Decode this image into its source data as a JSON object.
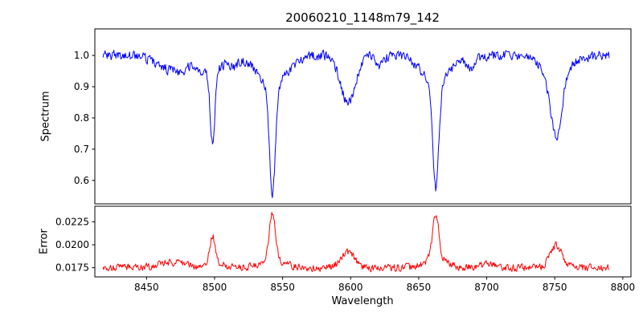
{
  "figure": {
    "title": "20060210_1148m79_142",
    "xlabel": "Wavelength",
    "background": "#ffffff"
  },
  "chart_data": [
    {
      "type": "line",
      "name": "spectrum",
      "title": "20060210_1148m79_142",
      "ylabel": "Spectrum",
      "xlabel": "",
      "color": "#0000ff",
      "grid": false,
      "legend": "none",
      "xlim": [
        8412,
        8806
      ],
      "ylim": [
        0.525,
        1.085
      ],
      "xticks": [
        8450,
        8500,
        8550,
        8600,
        8650,
        8700,
        8750,
        8800
      ],
      "xtick_labels": [
        "8450",
        "8500",
        "8550",
        "8600",
        "8650",
        "8700",
        "8750",
        "8800"
      ],
      "yticks": [
        0.6,
        0.7,
        0.8,
        0.9,
        1.0
      ],
      "ytick_labels": [
        "0.6",
        "0.7",
        "0.8",
        "0.9",
        "1.0"
      ],
      "x_data_range": [
        8418,
        8790
      ],
      "n_points": 745,
      "baseline": 1.0,
      "direction": -1,
      "noise_amp": 0.014,
      "seed": 1148,
      "key_features": [
        {
          "x": 8498,
          "min": 0.73
        },
        {
          "x": 8542,
          "min": 0.55
        },
        {
          "x": 8598,
          "min": 0.85
        },
        {
          "x": 8662,
          "min": 0.57
        },
        {
          "x": 8750,
          "min": 0.74
        }
      ],
      "features": [
        {
          "center": 8468,
          "amp": 0.045,
          "sigma": 10
        },
        {
          "center": 8477,
          "amp": 0.025,
          "sigma": 3.5
        },
        {
          "center": 8490,
          "amp": 0.02,
          "sigma": 3
        },
        {
          "center": 8498.5,
          "amp": 0.225,
          "sigma": 1.7
        },
        {
          "center": 8498.5,
          "amp": 0.05,
          "sigma": 8
        },
        {
          "center": 8514,
          "amp": 0.025,
          "sigma": 3
        },
        {
          "center": 8542.5,
          "amp": 0.355,
          "sigma": 2.1
        },
        {
          "center": 8542.5,
          "amp": 0.095,
          "sigma": 11
        },
        {
          "center": 8598,
          "amp": 0.15,
          "sigma": 5.5
        },
        {
          "center": 8621,
          "amp": 0.03,
          "sigma": 3
        },
        {
          "center": 8662.5,
          "amp": 0.335,
          "sigma": 2.2
        },
        {
          "center": 8662.5,
          "amp": 0.09,
          "sigma": 10
        },
        {
          "center": 8688,
          "amp": 0.035,
          "sigma": 3.5
        },
        {
          "center": 8751,
          "amp": 0.21,
          "sigma": 4.2
        },
        {
          "center": 8751,
          "amp": 0.05,
          "sigma": 11
        }
      ]
    },
    {
      "type": "line",
      "name": "error",
      "ylabel": "Error",
      "xlabel": "Wavelength",
      "color": "#ff0000",
      "grid": false,
      "legend": "none",
      "xlim": [
        8412,
        8806
      ],
      "ylim": [
        0.0165,
        0.0242
      ],
      "xticks": [
        8450,
        8500,
        8550,
        8600,
        8650,
        8700,
        8750,
        8800
      ],
      "xtick_labels": [
        "8450",
        "8500",
        "8550",
        "8600",
        "8650",
        "8700",
        "8750",
        "8800"
      ],
      "yticks": [
        0.0175,
        0.02,
        0.0225
      ],
      "ytick_labels": [
        "0.0175",
        "0.0200",
        "0.0225"
      ],
      "x_data_range": [
        8418,
        8790
      ],
      "n_points": 745,
      "baseline": 0.0175,
      "direction": 1,
      "noise_amp": 0.00035,
      "seed": 79142,
      "key_features": [
        {
          "x": 8498,
          "peak": 0.0203
        },
        {
          "x": 8542,
          "peak": 0.0235
        },
        {
          "x": 8598,
          "peak": 0.019
        },
        {
          "x": 8662,
          "peak": 0.023
        },
        {
          "x": 8750,
          "peak": 0.0202
        }
      ],
      "features": [
        {
          "center": 8468,
          "amp": 0.0006,
          "sigma": 9
        },
        {
          "center": 8498.5,
          "amp": 0.0028,
          "sigma": 2.0
        },
        {
          "center": 8498.5,
          "amp": 0.0006,
          "sigma": 7
        },
        {
          "center": 8542.5,
          "amp": 0.005,
          "sigma": 2.2
        },
        {
          "center": 8542.5,
          "amp": 0.001,
          "sigma": 8
        },
        {
          "center": 8598,
          "amp": 0.0017,
          "sigma": 5
        },
        {
          "center": 8662.5,
          "amp": 0.0047,
          "sigma": 2.3
        },
        {
          "center": 8662.5,
          "amp": 0.001,
          "sigma": 8
        },
        {
          "center": 8700,
          "amp": 0.0004,
          "sigma": 5
        },
        {
          "center": 8751,
          "amp": 0.0024,
          "sigma": 4.5
        }
      ]
    }
  ]
}
